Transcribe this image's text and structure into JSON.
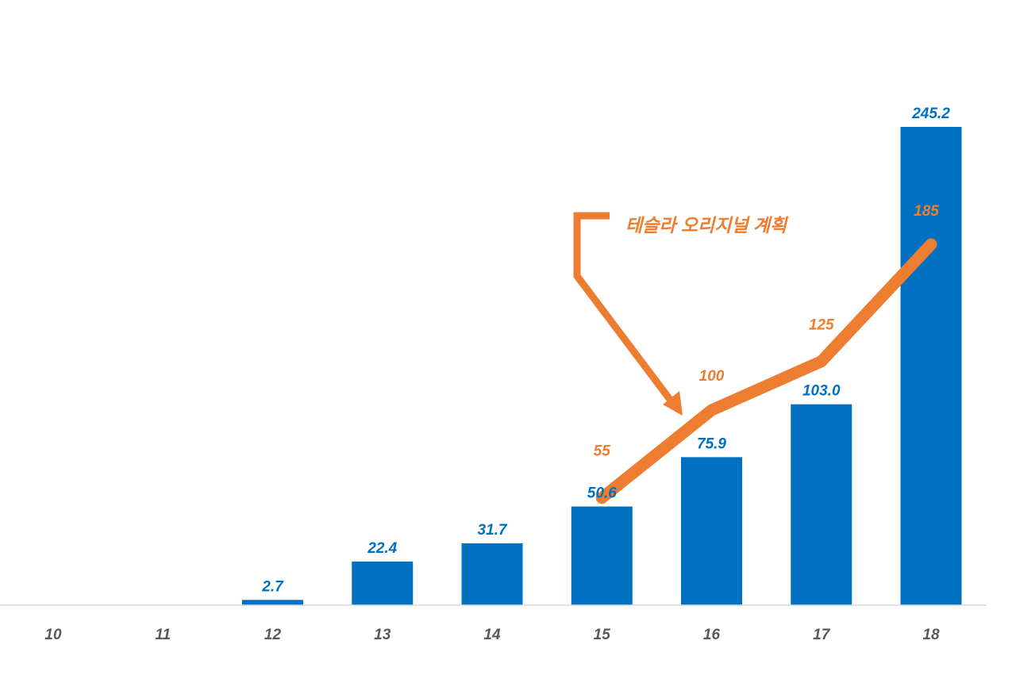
{
  "chart_data": {
    "type": "bar",
    "categories": [
      "10",
      "11",
      "12",
      "13",
      "14",
      "15",
      "16",
      "17",
      "18"
    ],
    "series": [
      {
        "type": "bar",
        "values": [
          null,
          null,
          2.7,
          22.4,
          31.7,
          50.6,
          75.9,
          103.0,
          245.2
        ],
        "labels": [
          "",
          "",
          "2.7",
          "22.4",
          "31.7",
          "50.6",
          "75.9",
          "103.0",
          "245.2"
        ],
        "color": "#0070C0"
      },
      {
        "type": "line",
        "values": [
          null,
          null,
          null,
          null,
          null,
          55,
          100,
          125,
          185
        ],
        "labels": [
          "",
          "",
          "",
          "",
          "",
          "55",
          "100",
          "125",
          "185"
        ],
        "color": "#ED7D31"
      }
    ],
    "annotation": {
      "text": "테슬라 오리지널 계획",
      "color": "#ED7D31",
      "points_to": "16"
    },
    "ylim": [
      0,
      250
    ],
    "grid": false,
    "legend": "none",
    "title": "",
    "xlabel": "",
    "ylabel": ""
  }
}
